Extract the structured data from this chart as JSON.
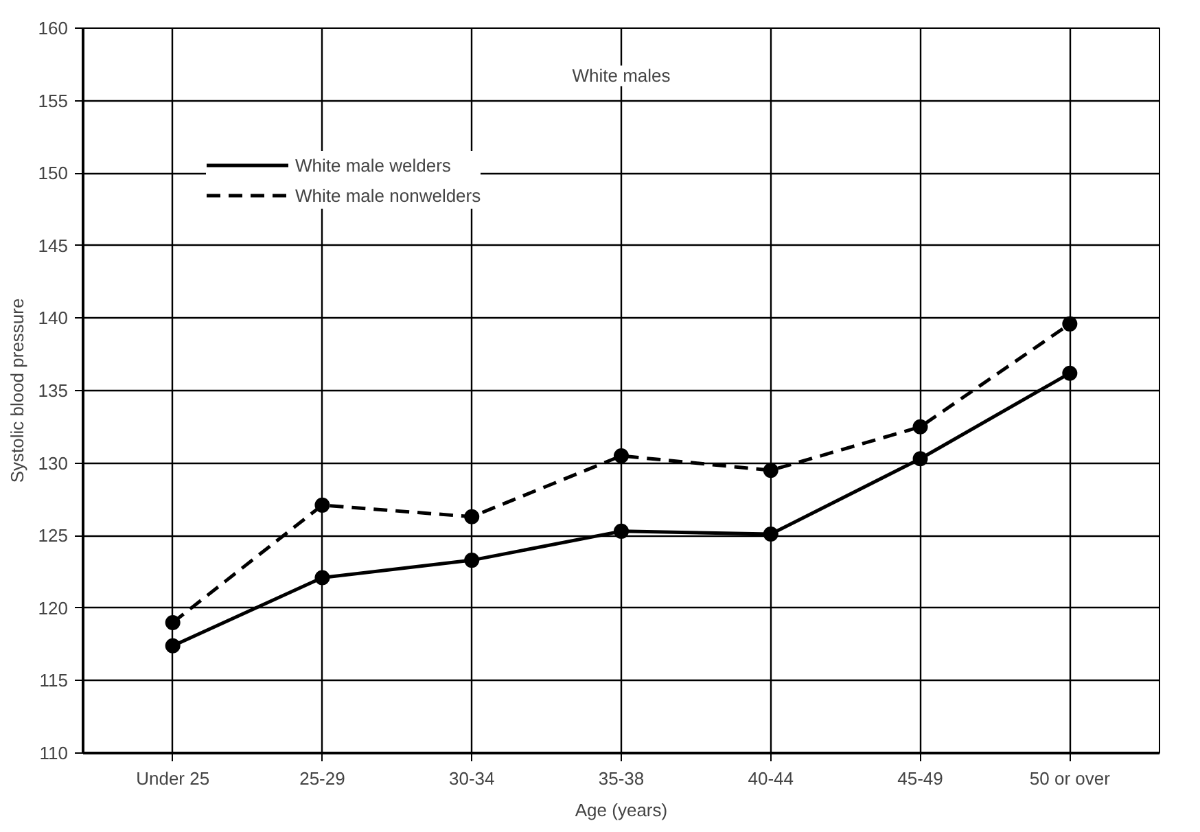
{
  "chart_data": {
    "type": "line",
    "xlabel": "Age (years)",
    "ylabel": "Systolic blood pressure",
    "categories": [
      "Under 25",
      "25-29",
      "30-34",
      "35-38",
      "40-44",
      "45-49",
      "50 or over"
    ],
    "series": [
      {
        "name": "White male welders",
        "color": "#000000",
        "line_style": "solid",
        "values": [
          117.4,
          122.1,
          123.3,
          125.3,
          125.1,
          130.3,
          136.2
        ]
      },
      {
        "name": "White male nonwelders",
        "color": "#000000",
        "line_style": "dashed",
        "values": [
          119.0,
          127.1,
          126.3,
          130.5,
          129.5,
          132.5,
          139.6
        ]
      }
    ],
    "ylim": [
      110,
      160
    ],
    "yticks": [
      110,
      115,
      120,
      125,
      130,
      135,
      140,
      145,
      150,
      155,
      160
    ],
    "annotations": [
      "White males"
    ],
    "grid": true,
    "legend": "top left",
    "marker": "circle"
  }
}
